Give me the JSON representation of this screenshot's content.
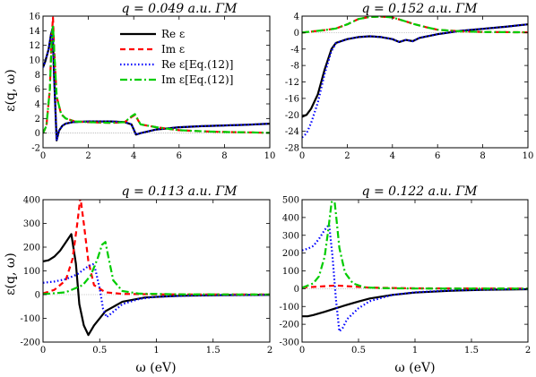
{
  "colors": {
    "re": "#000000",
    "im": "#ff0000",
    "re_eq12": "#0000ff",
    "im_eq12": "#00cc00"
  },
  "legend": {
    "placement": "top-right of top-left panel",
    "entries": [
      "Re ε",
      "Im ε",
      "Re ε[Eq.(12)]",
      "Im ε[Eq.(12)]"
    ]
  },
  "chart_data": [
    {
      "type": "line",
      "title": "q = 0.049 a.u. ΓM",
      "xlabel": "",
      "ylabel": "ε(q, ω)",
      "xlim": [
        0,
        10
      ],
      "ylim": [
        -2,
        16
      ],
      "xticks": [
        "0",
        "2",
        "4",
        "6",
        "8",
        "10"
      ],
      "yticks": [
        "-2",
        "0",
        "2",
        "4",
        "6",
        "8",
        "10",
        "12",
        "14",
        "16"
      ],
      "zero_line": true,
      "series": [
        {
          "name": "Re ε",
          "x": [
            0,
            0.1,
            0.25,
            0.35,
            0.42,
            0.5,
            0.6,
            0.7,
            0.85,
            1.0,
            1.3,
            2.0,
            3.0,
            3.6,
            3.9,
            4.1,
            4.3,
            5.0,
            6.0,
            7.0,
            8.0,
            9.0,
            10.0
          ],
          "y": [
            9,
            9.8,
            11.5,
            13.5,
            14.3,
            7,
            -1,
            0.3,
            1.0,
            1.3,
            1.5,
            1.6,
            1.6,
            1.5,
            1.2,
            -0.2,
            0.0,
            0.5,
            0.8,
            0.95,
            1.05,
            1.15,
            1.3
          ]
        },
        {
          "name": "Im ε",
          "x": [
            0,
            0.15,
            0.3,
            0.38,
            0.44,
            0.5,
            0.6,
            0.8,
            1.0,
            1.4,
            2.0,
            3.0,
            3.6,
            3.9,
            4.05,
            4.3,
            5.0,
            6.0,
            7.0,
            8.0,
            9.0,
            10.0
          ],
          "y": [
            0,
            1,
            6,
            13,
            15.8,
            11,
            5,
            2.6,
            2.0,
            1.6,
            1.5,
            1.4,
            1.5,
            2.2,
            2.5,
            1.2,
            0.8,
            0.4,
            0.25,
            0.15,
            0.1,
            0.05
          ]
        },
        {
          "name": "Re ε[Eq.(12)]",
          "x": [
            0,
            0.1,
            0.25,
            0.35,
            0.42,
            0.5,
            0.6,
            0.7,
            0.85,
            1.0,
            1.3,
            2.0,
            3.0,
            3.6,
            3.9,
            4.1,
            4.3,
            5.0,
            6.0,
            7.0,
            8.0,
            9.0,
            10.0
          ],
          "y": [
            9,
            9.8,
            11.5,
            13.5,
            14.3,
            7,
            -1,
            0.3,
            1.0,
            1.3,
            1.5,
            1.6,
            1.6,
            1.5,
            1.2,
            -0.2,
            0.0,
            0.5,
            0.8,
            0.95,
            1.05,
            1.15,
            1.3
          ]
        },
        {
          "name": "Im ε[Eq.(12)]",
          "x": [
            0,
            0.15,
            0.3,
            0.38,
            0.44,
            0.5,
            0.6,
            0.8,
            1.0,
            1.4,
            2.0,
            3.0,
            3.6,
            3.9,
            4.05,
            4.3,
            5.0,
            6.0,
            7.0,
            8.0,
            9.0,
            10.0
          ],
          "y": [
            0,
            1,
            6,
            12.5,
            14.8,
            11,
            5,
            2.6,
            2.0,
            1.6,
            1.5,
            1.4,
            1.5,
            2.3,
            2.6,
            1.2,
            0.8,
            0.4,
            0.25,
            0.15,
            0.1,
            0.05
          ]
        }
      ]
    },
    {
      "type": "line",
      "title": "q = 0.152 a.u. ΓM",
      "xlabel": "",
      "ylabel": "",
      "xlim": [
        0,
        10
      ],
      "ylim": [
        -28,
        4
      ],
      "xticks": [
        "0",
        "2",
        "4",
        "6",
        "8",
        "10"
      ],
      "yticks": [
        "-28",
        "-24",
        "-20",
        "-16",
        "-12",
        "-8",
        "-4",
        "0",
        "4"
      ],
      "zero_line": true,
      "series": [
        {
          "name": "Re ε",
          "x": [
            0,
            0.2,
            0.4,
            0.7,
            1.0,
            1.3,
            1.5,
            2.0,
            2.5,
            3.0,
            3.5,
            4.0,
            4.3,
            4.6,
            4.9,
            5.2,
            6.0,
            7.0,
            8.0,
            9.0,
            10.0
          ],
          "y": [
            -20.5,
            -20,
            -18.5,
            -15,
            -9,
            -4,
            -2.5,
            -1.6,
            -1.1,
            -0.9,
            -1.1,
            -1.6,
            -2.3,
            -1.8,
            -2.1,
            -1.3,
            -0.4,
            0.4,
            0.9,
            1.4,
            2.0
          ]
        },
        {
          "name": "Im ε",
          "x": [
            0,
            0.5,
            1.0,
            1.5,
            2.0,
            2.5,
            3.0,
            3.5,
            4.0,
            4.3,
            4.6,
            5.0,
            5.5,
            6.0,
            7.0,
            8.0,
            9.0,
            10.0
          ],
          "y": [
            0,
            0.3,
            0.6,
            1.0,
            2.0,
            3.3,
            3.8,
            3.9,
            3.7,
            3.2,
            2.7,
            2.0,
            1.3,
            0.7,
            0.3,
            0.15,
            0.1,
            0.05
          ]
        },
        {
          "name": "Re ε[Eq.(12)]",
          "x": [
            0,
            0.2,
            0.4,
            0.7,
            1.0,
            1.3,
            1.5,
            2.0,
            2.5,
            3.0,
            3.5,
            4.0,
            4.3,
            4.6,
            4.9,
            5.2,
            6.0,
            7.0,
            8.0,
            9.0,
            10.0
          ],
          "y": [
            -25.5,
            -24.5,
            -22,
            -17,
            -10,
            -4.5,
            -2.6,
            -1.6,
            -1.1,
            -0.9,
            -1.1,
            -1.6,
            -2.3,
            -1.8,
            -2.1,
            -1.3,
            -0.4,
            0.4,
            0.9,
            1.4,
            2.0
          ]
        },
        {
          "name": "Im ε[Eq.(12)]",
          "x": [
            0,
            0.5,
            1.0,
            1.5,
            2.0,
            2.5,
            3.0,
            3.5,
            4.0,
            4.3,
            4.6,
            5.0,
            5.5,
            6.0,
            7.0,
            8.0,
            9.0,
            10.0
          ],
          "y": [
            0,
            0.3,
            0.6,
            1.0,
            2.0,
            3.3,
            3.8,
            3.9,
            3.7,
            3.2,
            2.7,
            2.0,
            1.3,
            0.7,
            0.3,
            0.15,
            0.1,
            0.05
          ]
        }
      ]
    },
    {
      "type": "line",
      "title": "q = 0.113 a.u. ΓM",
      "xlabel": "ω (eV)",
      "ylabel": "ε(q, ω)",
      "xlim": [
        0,
        2
      ],
      "ylim": [
        -200,
        400
      ],
      "xticks": [
        "0",
        "0.5",
        "1",
        "1.5",
        "2"
      ],
      "yticks": [
        "-200",
        "-100",
        "0",
        "100",
        "200",
        "300",
        "400"
      ],
      "zero_line": true,
      "series": [
        {
          "name": "Re ε",
          "x": [
            0,
            0.05,
            0.1,
            0.15,
            0.2,
            0.25,
            0.29,
            0.32,
            0.36,
            0.4,
            0.45,
            0.55,
            0.7,
            0.9,
            1.2,
            1.6,
            2.0
          ],
          "y": [
            140,
            145,
            160,
            185,
            220,
            255,
            130,
            -40,
            -130,
            -170,
            -130,
            -70,
            -30,
            -12,
            -5,
            -2,
            -1
          ]
        },
        {
          "name": "Im ε",
          "x": [
            0,
            0.1,
            0.2,
            0.26,
            0.3,
            0.33,
            0.36,
            0.4,
            0.45,
            0.55,
            0.7,
            1.0,
            1.5,
            2.0
          ],
          "y": [
            5,
            20,
            60,
            150,
            290,
            410,
            300,
            140,
            40,
            10,
            3,
            1,
            0.5,
            0.2
          ]
        },
        {
          "name": "Re ε[Eq.(12)]",
          "x": [
            0,
            0.1,
            0.2,
            0.3,
            0.4,
            0.45,
            0.5,
            0.53,
            0.56,
            0.6,
            0.7,
            0.85,
            1.0,
            1.3,
            1.6,
            2.0
          ],
          "y": [
            50,
            55,
            65,
            85,
            120,
            130,
            25,
            -60,
            -95,
            -80,
            -40,
            -18,
            -9,
            -4,
            -2,
            -1
          ]
        },
        {
          "name": "Im ε[Eq.(12)]",
          "x": [
            0,
            0.2,
            0.35,
            0.42,
            0.48,
            0.52,
            0.55,
            0.58,
            0.62,
            0.7,
            0.85,
            1.2,
            2.0
          ],
          "y": [
            2,
            10,
            40,
            80,
            150,
            210,
            222,
            150,
            60,
            15,
            4,
            1,
            0.2
          ]
        }
      ]
    },
    {
      "type": "line",
      "title": "q = 0.122 a.u. ΓM",
      "xlabel": "ω (eV)",
      "ylabel": "",
      "xlim": [
        0,
        2
      ],
      "ylim": [
        -300,
        500
      ],
      "xticks": [
        "0",
        "0.5",
        "1",
        "1.5",
        "2"
      ],
      "yticks": [
        "-300",
        "-200",
        "-100",
        "0",
        "100",
        "200",
        "300",
        "400",
        "500"
      ],
      "zero_line": true,
      "series": [
        {
          "name": "Re ε",
          "x": [
            0,
            0.05,
            0.1,
            0.2,
            0.3,
            0.4,
            0.5,
            0.6,
            0.8,
            1.0,
            1.3,
            1.6,
            2.0
          ],
          "y": [
            -155,
            -155,
            -148,
            -130,
            -110,
            -90,
            -72,
            -55,
            -35,
            -22,
            -12,
            -6,
            -3
          ]
        },
        {
          "name": "Im ε",
          "x": [
            0,
            0.1,
            0.2,
            0.3,
            0.4,
            0.6,
            1.0,
            2.0
          ],
          "y": [
            8,
            10,
            14,
            18,
            14,
            6,
            2,
            0.5
          ]
        },
        {
          "name": "Re ε[Eq.(12)]",
          "x": [
            0,
            0.05,
            0.1,
            0.15,
            0.2,
            0.24,
            0.27,
            0.3,
            0.33,
            0.36,
            0.4,
            0.5,
            0.6,
            0.8,
            1.0,
            1.3,
            1.6,
            2.0
          ],
          "y": [
            215,
            225,
            240,
            280,
            330,
            360,
            180,
            -60,
            -240,
            -220,
            -170,
            -110,
            -70,
            -35,
            -20,
            -10,
            -5,
            -2
          ]
        },
        {
          "name": "Im ε[Eq.(12)]",
          "x": [
            0,
            0.1,
            0.15,
            0.2,
            0.23,
            0.26,
            0.28,
            0.3,
            0.33,
            0.38,
            0.45,
            0.55,
            0.7,
            1.0,
            2.0
          ],
          "y": [
            5,
            30,
            70,
            180,
            320,
            480,
            535,
            420,
            230,
            90,
            30,
            8,
            3,
            1,
            0.2
          ]
        }
      ]
    }
  ]
}
